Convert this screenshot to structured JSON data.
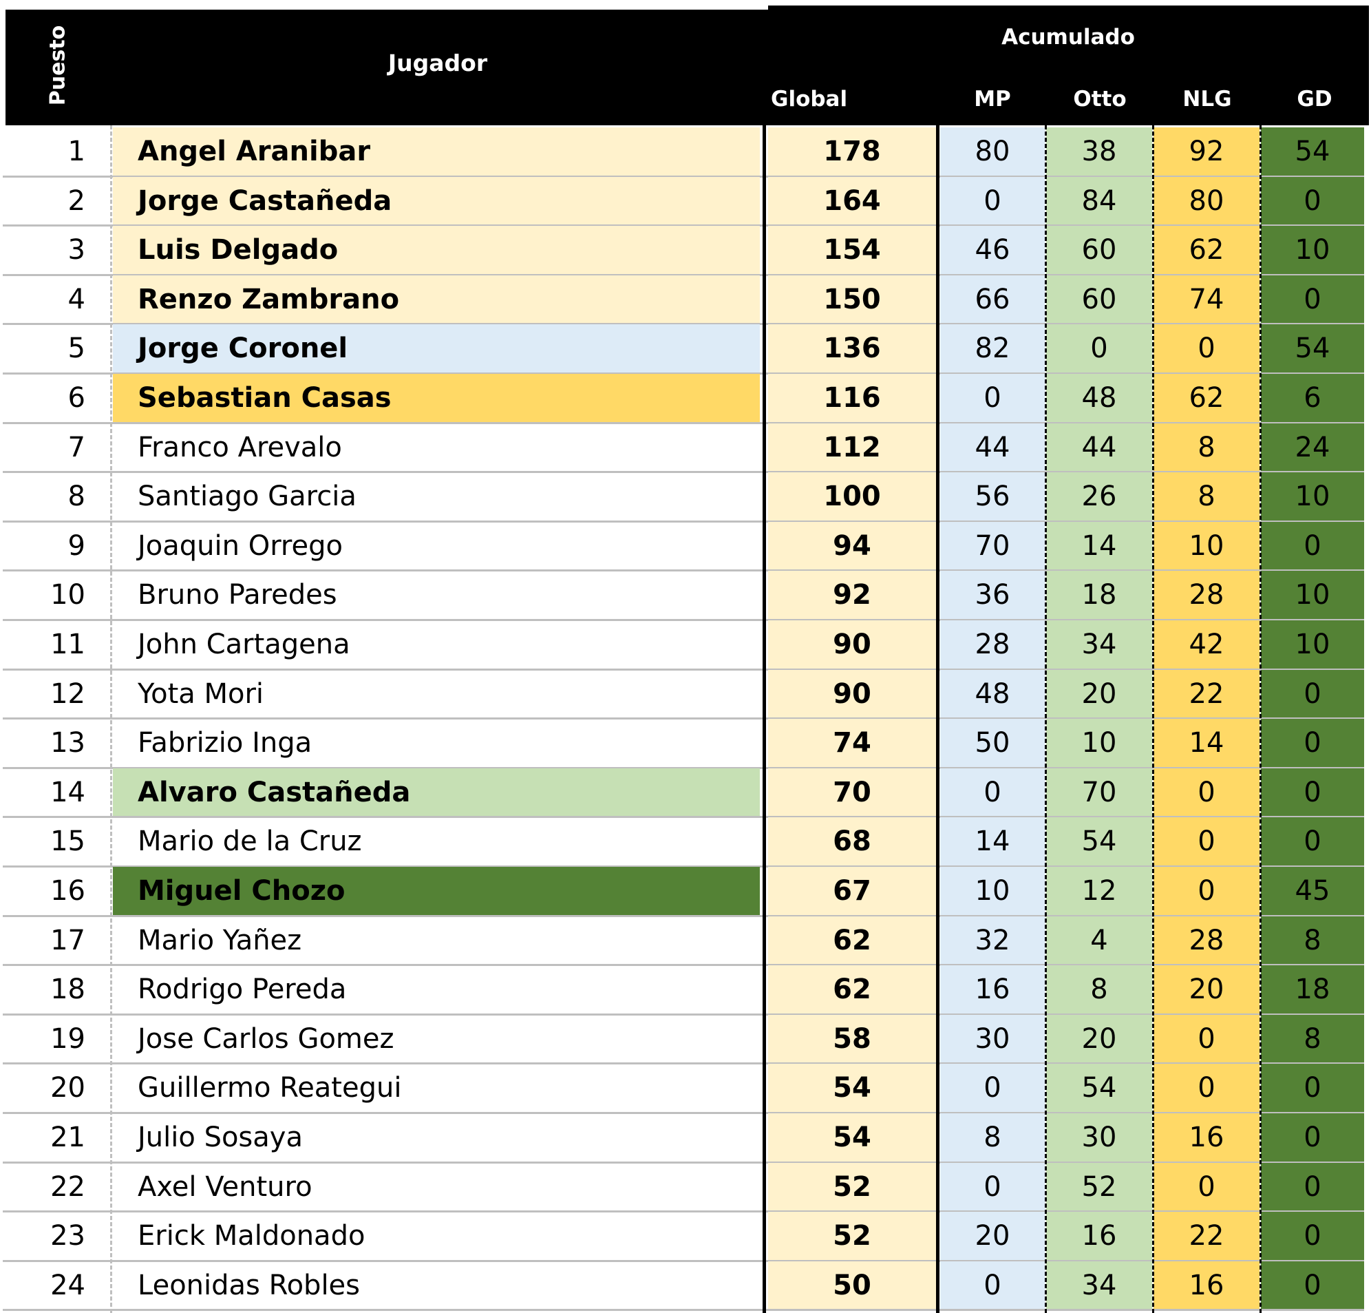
{
  "header": {
    "puesto": "Puesto",
    "jugador": "Jugador",
    "acumulado": "Acumulado",
    "global": "Global",
    "mp": "MP",
    "otto": "Otto",
    "nlg": "NLG",
    "gd": "GD"
  },
  "colors": {
    "highlight_cream": "#fff2cc",
    "highlight_blue": "#ddebf7",
    "highlight_gold": "#ffd966",
    "highlight_light_green": "#c6e0b4",
    "highlight_dark_green": "#548235"
  },
  "rows": [
    {
      "rank": "1",
      "name": "Angel Aranibar",
      "global": "178",
      "mp": "80",
      "otto": "38",
      "nlg": "92",
      "gd": "54",
      "highlight": "cream"
    },
    {
      "rank": "2",
      "name": "Jorge Castañeda",
      "global": "164",
      "mp": "0",
      "otto": "84",
      "nlg": "80",
      "gd": "0",
      "highlight": "cream"
    },
    {
      "rank": "3",
      "name": "Luis Delgado",
      "global": "154",
      "mp": "46",
      "otto": "60",
      "nlg": "62",
      "gd": "10",
      "highlight": "cream"
    },
    {
      "rank": "4",
      "name": "Renzo Zambrano",
      "global": "150",
      "mp": "66",
      "otto": "60",
      "nlg": "74",
      "gd": "0",
      "highlight": "cream"
    },
    {
      "rank": "5",
      "name": "Jorge Coronel",
      "global": "136",
      "mp": "82",
      "otto": "0",
      "nlg": "0",
      "gd": "54",
      "highlight": "blue"
    },
    {
      "rank": "6",
      "name": "Sebastian Casas",
      "global": "116",
      "mp": "0",
      "otto": "48",
      "nlg": "62",
      "gd": "6",
      "highlight": "gold"
    },
    {
      "rank": "7",
      "name": "Franco Arevalo",
      "global": "112",
      "mp": "44",
      "otto": "44",
      "nlg": "8",
      "gd": "24",
      "highlight": "none"
    },
    {
      "rank": "8",
      "name": "Santiago Garcia",
      "global": "100",
      "mp": "56",
      "otto": "26",
      "nlg": "8",
      "gd": "10",
      "highlight": "none"
    },
    {
      "rank": "9",
      "name": "Joaquin Orrego",
      "global": "94",
      "mp": "70",
      "otto": "14",
      "nlg": "10",
      "gd": "0",
      "highlight": "none"
    },
    {
      "rank": "10",
      "name": "Bruno Paredes",
      "global": "92",
      "mp": "36",
      "otto": "18",
      "nlg": "28",
      "gd": "10",
      "highlight": "none"
    },
    {
      "rank": "11",
      "name": "John Cartagena",
      "global": "90",
      "mp": "28",
      "otto": "34",
      "nlg": "42",
      "gd": "10",
      "highlight": "none"
    },
    {
      "rank": "12",
      "name": "Yota Mori",
      "global": "90",
      "mp": "48",
      "otto": "20",
      "nlg": "22",
      "gd": "0",
      "highlight": "none"
    },
    {
      "rank": "13",
      "name": "Fabrizio Inga",
      "global": "74",
      "mp": "50",
      "otto": "10",
      "nlg": "14",
      "gd": "0",
      "highlight": "none"
    },
    {
      "rank": "14",
      "name": "Alvaro Castañeda",
      "global": "70",
      "mp": "0",
      "otto": "70",
      "nlg": "0",
      "gd": "0",
      "highlight": "light_green"
    },
    {
      "rank": "15",
      "name": "Mario de la Cruz",
      "global": "68",
      "mp": "14",
      "otto": "54",
      "nlg": "0",
      "gd": "0",
      "highlight": "none"
    },
    {
      "rank": "16",
      "name": "Miguel Chozo",
      "global": "67",
      "mp": "10",
      "otto": "12",
      "nlg": "0",
      "gd": "45",
      "highlight": "dark_green"
    },
    {
      "rank": "17",
      "name": "Mario Yañez",
      "global": "62",
      "mp": "32",
      "otto": "4",
      "nlg": "28",
      "gd": "8",
      "highlight": "none"
    },
    {
      "rank": "18",
      "name": "Rodrigo Pereda",
      "global": "62",
      "mp": "16",
      "otto": "8",
      "nlg": "20",
      "gd": "18",
      "highlight": "none"
    },
    {
      "rank": "19",
      "name": "Jose Carlos Gomez",
      "global": "58",
      "mp": "30",
      "otto": "20",
      "nlg": "0",
      "gd": "8",
      "highlight": "none"
    },
    {
      "rank": "20",
      "name": "Guillermo Reategui",
      "global": "54",
      "mp": "0",
      "otto": "54",
      "nlg": "0",
      "gd": "0",
      "highlight": "none"
    },
    {
      "rank": "21",
      "name": "Julio Sosaya",
      "global": "54",
      "mp": "8",
      "otto": "30",
      "nlg": "16",
      "gd": "0",
      "highlight": "none"
    },
    {
      "rank": "22",
      "name": "Axel Venturo",
      "global": "52",
      "mp": "0",
      "otto": "52",
      "nlg": "0",
      "gd": "0",
      "highlight": "none"
    },
    {
      "rank": "23",
      "name": "Erick Maldonado",
      "global": "52",
      "mp": "20",
      "otto": "16",
      "nlg": "22",
      "gd": "0",
      "highlight": "none"
    },
    {
      "rank": "24",
      "name": "Leonidas Robles",
      "global": "50",
      "mp": "0",
      "otto": "34",
      "nlg": "16",
      "gd": "0",
      "highlight": "none"
    }
  ]
}
